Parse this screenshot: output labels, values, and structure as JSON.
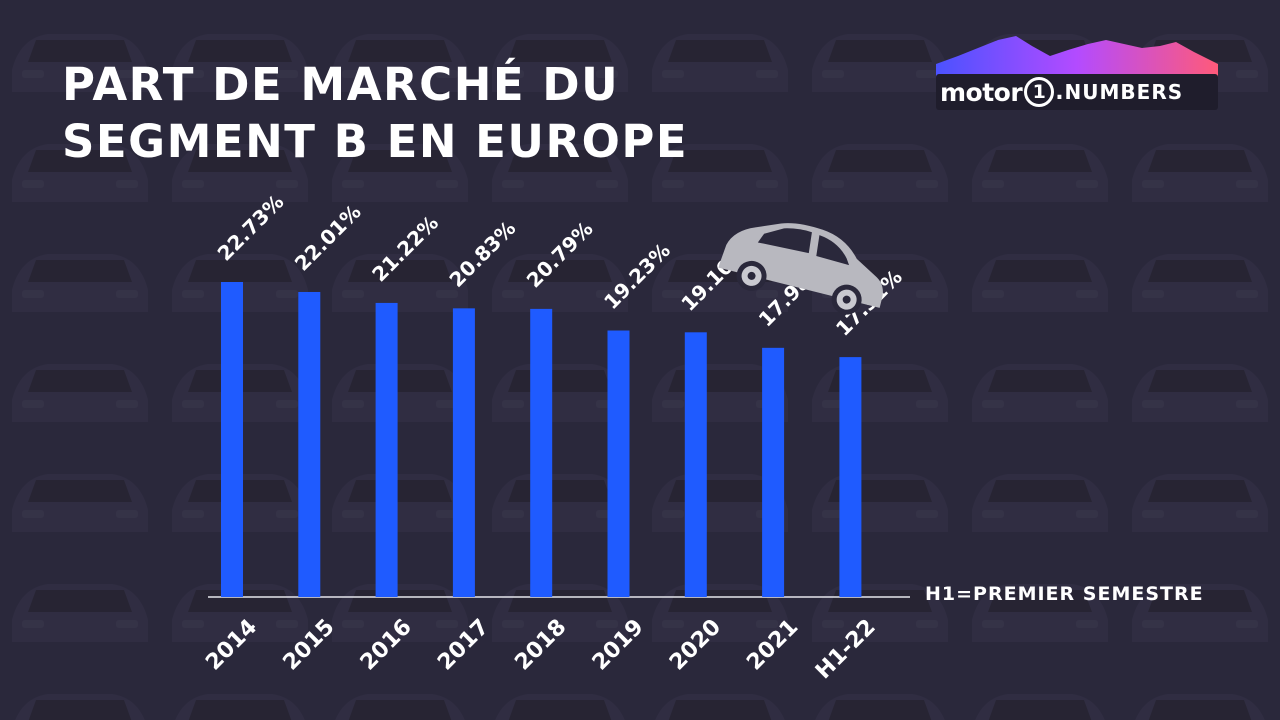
{
  "header": {
    "title_line1": "PART DE MARCHÉ DU",
    "title_line2": "SEGMENT B EN EUROPE"
  },
  "logo": {
    "brand": "motor",
    "brand_number": "1",
    "suffix": "NUMBERS"
  },
  "note": "H1=PREMIER SEMESTRE",
  "colors": {
    "bar": "#1f5bff",
    "text": "#ffffff",
    "background": "#2a283b",
    "car": "#b8b8bf"
  },
  "icons": [
    "car-icon"
  ],
  "chart_data": {
    "type": "bar",
    "categories": [
      "2014",
      "2015",
      "2016",
      "2017",
      "2018",
      "2019",
      "2020",
      "2021",
      "H1-22"
    ],
    "values": [
      22.73,
      22.01,
      21.22,
      20.83,
      20.79,
      19.23,
      19.1,
      17.98,
      17.31
    ],
    "labels": [
      "22.73%",
      "22.01%",
      "21.22%",
      "20.83%",
      "20.79%",
      "19.23%",
      "19.10%",
      "17.98%",
      "17.31%"
    ],
    "title": "PART DE MARCHÉ DU SEGMENT B EN EUROPE",
    "xlabel": "",
    "ylabel": "",
    "grid": false,
    "legend": "none"
  }
}
